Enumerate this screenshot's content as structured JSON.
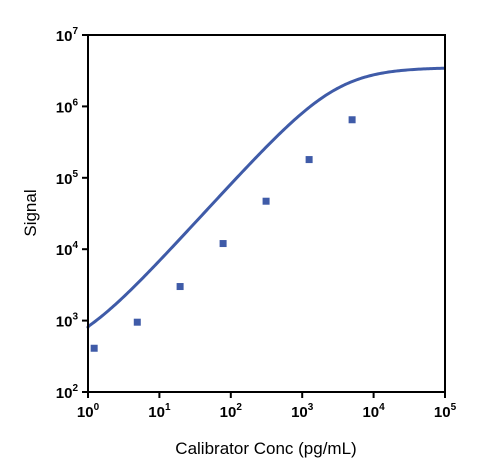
{
  "chart_data": {
    "type": "line",
    "title": "",
    "xlabel": "Calibrator Conc (pg/mL)",
    "ylabel": "Signal",
    "x_scale": "log",
    "y_scale": "log",
    "xlim": [
      1,
      100000
    ],
    "ylim": [
      100,
      10000000
    ],
    "x_ticks": [
      {
        "value": 1,
        "base": "10",
        "exp": "0"
      },
      {
        "value": 10,
        "base": "10",
        "exp": "1"
      },
      {
        "value": 100,
        "base": "10",
        "exp": "2"
      },
      {
        "value": 1000,
        "base": "10",
        "exp": "3"
      },
      {
        "value": 10000,
        "base": "10",
        "exp": "4"
      },
      {
        "value": 100000,
        "base": "10",
        "exp": "5"
      }
    ],
    "y_ticks": [
      {
        "value": 100,
        "base": "10",
        "exp": "2"
      },
      {
        "value": 1000,
        "base": "10",
        "exp": "3"
      },
      {
        "value": 10000,
        "base": "10",
        "exp": "4"
      },
      {
        "value": 100000,
        "base": "10",
        "exp": "5"
      },
      {
        "value": 1000000,
        "base": "10",
        "exp": "6"
      },
      {
        "value": 10000000,
        "base": "10",
        "exp": "7"
      }
    ],
    "grid": false,
    "legend": "none",
    "color": "#3f5ba8",
    "points": [
      {
        "x": 1.22,
        "y": 410
      },
      {
        "x": 4.9,
        "y": 950
      },
      {
        "x": 19.5,
        "y": 3000
      },
      {
        "x": 78,
        "y": 12000
      },
      {
        "x": 312,
        "y": 47000
      },
      {
        "x": 1250,
        "y": 180000
      },
      {
        "x": 5000,
        "y": 650000
      }
    ],
    "fit": {
      "model": "4PL",
      "A": 300,
      "D": 3500000,
      "C": 3000,
      "B": 1.1
    }
  }
}
